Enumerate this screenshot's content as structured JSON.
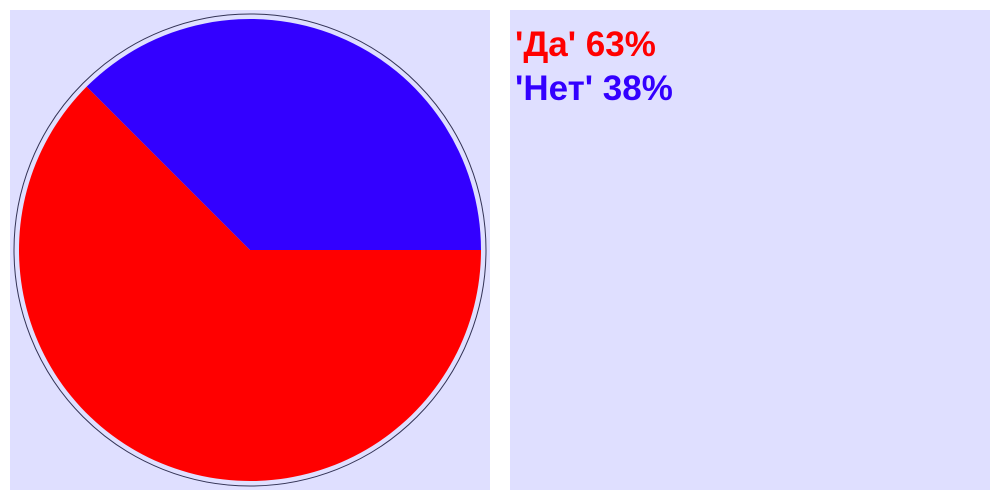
{
  "chart_data": {
    "type": "pie",
    "slices": [
      {
        "label": "'Да'",
        "value": 62.5,
        "percent_label": "63%",
        "color": "#ff0000"
      },
      {
        "label": "'Нет'",
        "value": 37.5,
        "percent_label": "38%",
        "color": "#3300ff"
      }
    ],
    "legend_placement": "right",
    "background": "#dfdfff",
    "legend": [
      {
        "text": "'Да' 63%",
        "color": "#ff0000"
      },
      {
        "text": "'Нет' 38%",
        "color": "#3300ff"
      }
    ]
  }
}
